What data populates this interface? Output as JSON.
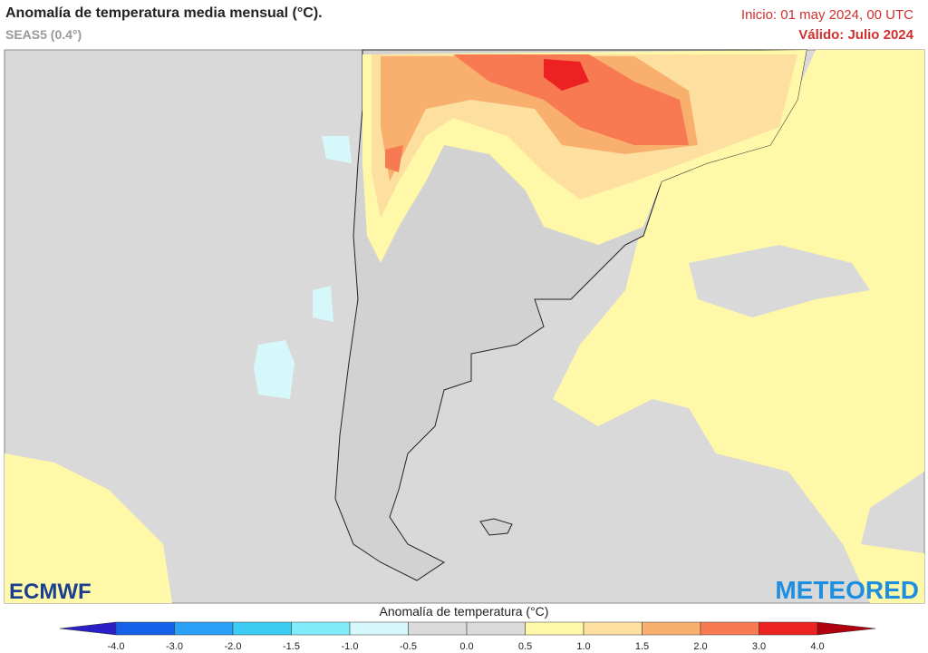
{
  "header": {
    "title": "Anomalía de temperatura media mensual (°C).",
    "subtitle": "SEAS5 (0.4°)",
    "init": "Inicio: 01 may 2024, 00 UTC",
    "valid": "Válido: Julio 2024"
  },
  "logos": {
    "left": "ECMWF",
    "right": "METEORED"
  },
  "legend": {
    "title": "Anomalía de temperatura (°C)",
    "ticks": [
      "-4.0",
      "-3.0",
      "-2.0",
      "-1.5",
      "-1.0",
      "-0.5",
      "0.0",
      "0.5",
      "1.0",
      "1.5",
      "2.0",
      "3.0",
      "4.0"
    ],
    "colors": [
      "#2a1fc4",
      "#1660e8",
      "#2aa0f6",
      "#3ccbf2",
      "#80ecfa",
      "#d6f8fa",
      "#dadada",
      "#dadada",
      "#fff8a8",
      "#fde0a0",
      "#f9b06e",
      "#f77a52",
      "#ec2222",
      "#b00010"
    ]
  }
}
